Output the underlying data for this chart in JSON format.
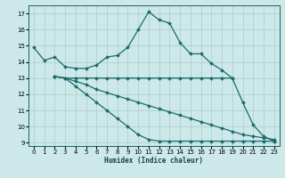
{
  "xlabel": "Humidex (Indice chaleur)",
  "ylabel": "",
  "xlim": [
    -0.5,
    23.5
  ],
  "ylim": [
    8.8,
    17.5
  ],
  "yticks": [
    9,
    10,
    11,
    12,
    13,
    14,
    15,
    16,
    17
  ],
  "xticks": [
    0,
    1,
    2,
    3,
    4,
    5,
    6,
    7,
    8,
    9,
    10,
    11,
    12,
    13,
    14,
    15,
    16,
    17,
    18,
    19,
    20,
    21,
    22,
    23
  ],
  "background_color": "#cde8e8",
  "grid_color": "#aacccc",
  "line_color": "#1a6b6b",
  "lines": [
    {
      "x": [
        0,
        1,
        2,
        3,
        4,
        5,
        6,
        7,
        8,
        9,
        10,
        11,
        12,
        13,
        14,
        15,
        16,
        17,
        18,
        19,
        20,
        21,
        22,
        23
      ],
      "y": [
        14.9,
        14.1,
        14.3,
        13.7,
        13.6,
        13.6,
        13.8,
        14.3,
        14.4,
        14.9,
        16.0,
        17.1,
        16.6,
        16.4,
        15.2,
        14.5,
        14.5,
        13.9,
        13.5,
        13.0,
        11.5,
        10.1,
        9.4,
        9.1
      ]
    },
    {
      "x": [
        2,
        3,
        4,
        5,
        6,
        7,
        8,
        9,
        10,
        11,
        12,
        13,
        14,
        15,
        16,
        17,
        18,
        19
      ],
      "y": [
        13.1,
        13.0,
        13.0,
        13.0,
        13.0,
        13.0,
        13.0,
        13.0,
        13.0,
        13.0,
        13.0,
        13.0,
        13.0,
        13.0,
        13.0,
        13.0,
        13.0,
        13.0
      ]
    },
    {
      "x": [
        2,
        3,
        4,
        5,
        6,
        7,
        8,
        9,
        10,
        11,
        12,
        13,
        14,
        15,
        16,
        17,
        18,
        19,
        20,
        21,
        22,
        23
      ],
      "y": [
        13.1,
        13.0,
        12.8,
        12.6,
        12.3,
        12.1,
        11.9,
        11.7,
        11.5,
        11.3,
        11.1,
        10.9,
        10.7,
        10.5,
        10.3,
        10.1,
        9.9,
        9.7,
        9.5,
        9.4,
        9.3,
        9.2
      ]
    },
    {
      "x": [
        2,
        3,
        4,
        5,
        6,
        7,
        8,
        9,
        10,
        11,
        12,
        13,
        14,
        15,
        16,
        17,
        18,
        19,
        20,
        21,
        22,
        23
      ],
      "y": [
        13.1,
        13.0,
        12.5,
        12.0,
        11.5,
        11.0,
        10.5,
        10.0,
        9.5,
        9.2,
        9.1,
        9.1,
        9.1,
        9.1,
        9.1,
        9.1,
        9.1,
        9.1,
        9.1,
        9.1,
        9.1,
        9.1
      ]
    }
  ]
}
